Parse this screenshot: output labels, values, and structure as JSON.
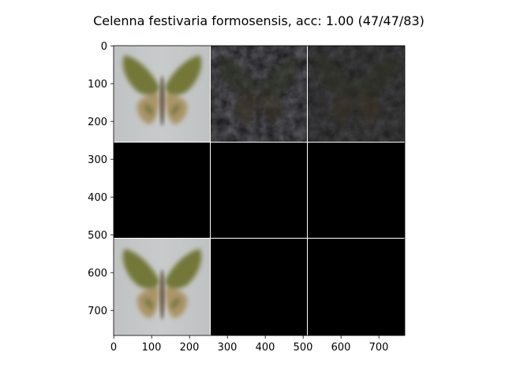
{
  "title": "Celenna festivaria formosensis, acc: 1.00 (47/47/83)",
  "x_axis": {
    "ticks": [
      "0",
      "100",
      "200",
      "300",
      "400",
      "500",
      "600",
      "700"
    ]
  },
  "y_axis": {
    "ticks": [
      "0",
      "100",
      "200",
      "300",
      "400",
      "500",
      "600",
      "700"
    ]
  },
  "grid": {
    "rows": 3,
    "cols": 3,
    "cells": [
      {
        "content": "butterfly-bright"
      },
      {
        "content": "butterfly-dark-noise"
      },
      {
        "content": "butterfly-dark-faint"
      },
      {
        "content": "black"
      },
      {
        "content": "black"
      },
      {
        "content": "black"
      },
      {
        "content": "butterfly-bright"
      },
      {
        "content": "black"
      },
      {
        "content": "black"
      }
    ]
  },
  "colors": {
    "background": "#ffffff",
    "bright_cell_bg": "#c3c6c6",
    "dark_cell_bg": "#16161a",
    "black": "#000000",
    "separator": "#ffffff",
    "wing_olive": "#7a7a3c",
    "wing_tan": "#b49a6e",
    "body_brown": "#6b5a44"
  }
}
